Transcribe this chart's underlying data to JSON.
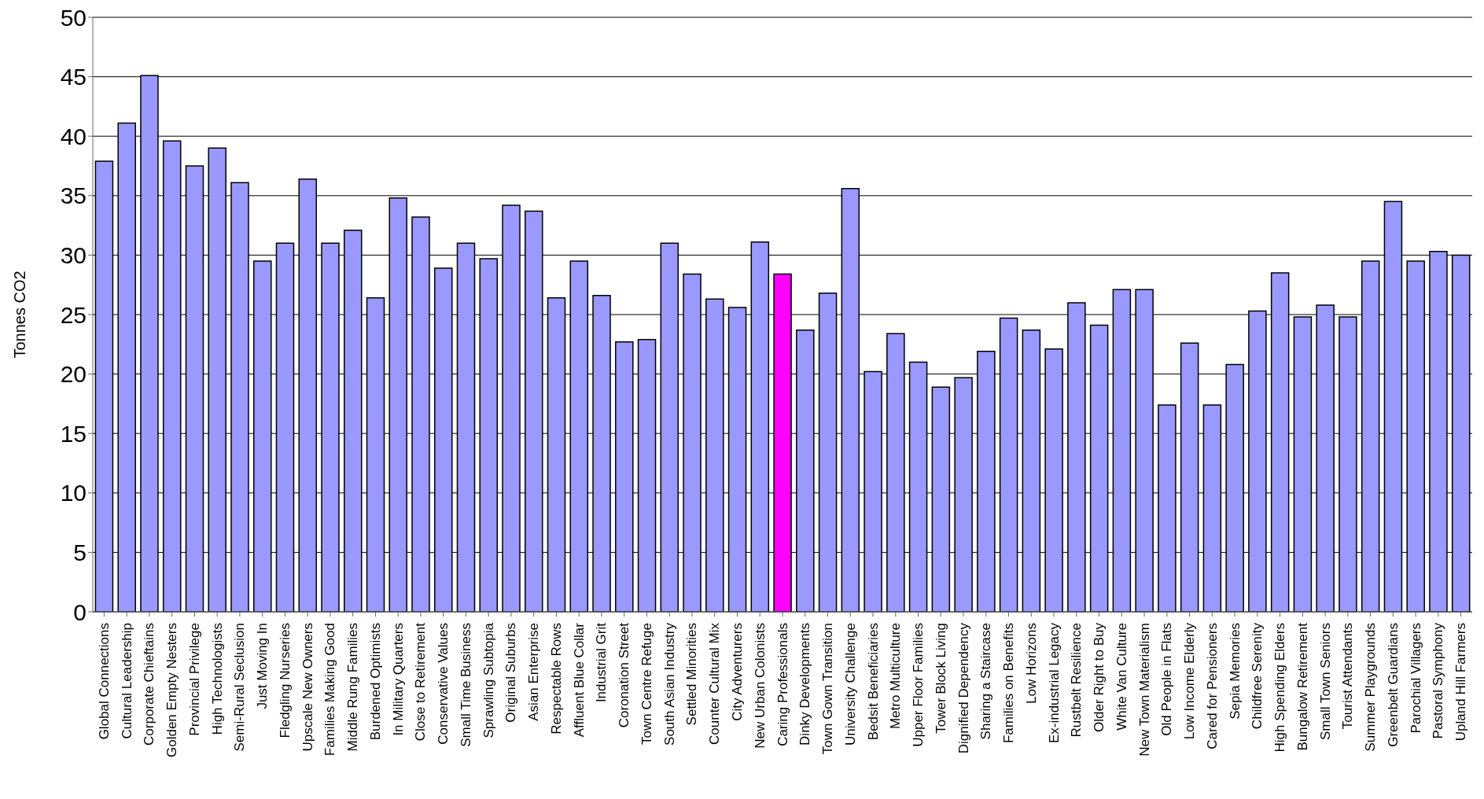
{
  "chart_data": {
    "type": "bar",
    "ylabel": "Tonnes CO2",
    "categories": [
      "Global Connections",
      "Cultural Leadership",
      "Corporate Chieftains",
      "Golden Empty Nesters",
      "Provincial Privilege",
      "High Technologists",
      "Semi-Rural Seclusion",
      "Just Moving In",
      "Fledgling Nurseries",
      "Upscale New Owners",
      "Families Making Good",
      "Middle Rung Families",
      "Burdened Optimists",
      "In Military Quarters",
      "Close to Retirement",
      "Conservative Values",
      "Small Time Business",
      "Sprawling Subtopia",
      "Original Suburbs",
      "Asian Enterprise",
      "Respectable Rows",
      "Affluent Blue Collar",
      "Industrial Grit",
      "Coronation Street",
      "Town Centre Refuge",
      "South Asian Industry",
      "Settled Minorities",
      "Counter Cultural Mix",
      "City Adventurers",
      "New Urban Colonists",
      "Caring Professionals",
      "Dinky Developments",
      "Town Gown Transition",
      "University Challenge",
      "Bedsit Beneficiaries",
      "Metro Multiculture",
      "Upper Floor Families",
      "Tower Block Living",
      "Dignified Dependency",
      "Sharing a Staircase",
      "Families on Benefits",
      "Low Horizons",
      "Ex-industrial Legacy",
      "Rustbelt Resilience",
      "Older Right to Buy",
      "White Van Culture",
      "New Town Materialism",
      "Old People in Flats",
      "Low Income Elderly",
      "Cared for Pensioners",
      "Sepia Memories",
      "Childfree Serenity",
      "High Spending Elders",
      "Bungalow Retirement",
      "Small Town Seniors",
      "Tourist Attendants",
      "Summer Playgrounds",
      "Greenbelt Guardians",
      "Parochial Villagers",
      "Pastoral Symphony",
      "Upland Hill Farmers"
    ],
    "values": [
      37.9,
      41.1,
      45.1,
      39.6,
      37.5,
      39.0,
      36.1,
      29.5,
      31.0,
      36.4,
      31.0,
      32.1,
      26.4,
      34.8,
      33.2,
      28.9,
      31.0,
      29.7,
      34.2,
      33.7,
      26.4,
      29.5,
      26.6,
      22.7,
      22.9,
      31.0,
      28.4,
      26.3,
      25.6,
      31.1,
      28.4,
      23.7,
      26.8,
      35.6,
      20.2,
      23.4,
      21.0,
      18.9,
      19.7,
      21.9,
      24.7,
      23.7,
      22.1,
      26.0,
      24.1,
      27.1,
      27.1,
      17.4,
      22.6,
      17.4,
      20.8,
      25.3,
      28.5,
      24.8,
      25.8,
      24.8,
      29.5,
      34.5,
      29.5,
      30.3,
      30.0
    ],
    "colors": [
      "#9999ff",
      "#9999ff",
      "#9999ff",
      "#9999ff",
      "#9999ff",
      "#9999ff",
      "#9999ff",
      "#9999ff",
      "#9999ff",
      "#9999ff",
      "#9999ff",
      "#9999ff",
      "#9999ff",
      "#9999ff",
      "#9999ff",
      "#9999ff",
      "#9999ff",
      "#9999ff",
      "#9999ff",
      "#9999ff",
      "#9999ff",
      "#9999ff",
      "#9999ff",
      "#9999ff",
      "#9999ff",
      "#9999ff",
      "#9999ff",
      "#9999ff",
      "#9999ff",
      "#9999ff",
      "#ff00ff",
      "#9999ff",
      "#9999ff",
      "#9999ff",
      "#9999ff",
      "#9999ff",
      "#9999ff",
      "#9999ff",
      "#9999ff",
      "#9999ff",
      "#9999ff",
      "#9999ff",
      "#9999ff",
      "#9999ff",
      "#9999ff",
      "#9999ff",
      "#9999ff",
      "#9999ff",
      "#9999ff",
      "#9999ff",
      "#9999ff",
      "#9999ff",
      "#9999ff",
      "#9999ff",
      "#9999ff",
      "#9999ff",
      "#9999ff",
      "#9999ff",
      "#9999ff",
      "#9999ff",
      "#9999ff"
    ],
    "ylim": [
      0,
      50
    ],
    "yticks": [
      0,
      5,
      10,
      15,
      20,
      25,
      30,
      35,
      40,
      45,
      50
    ],
    "grid": "y",
    "legend": false
  }
}
